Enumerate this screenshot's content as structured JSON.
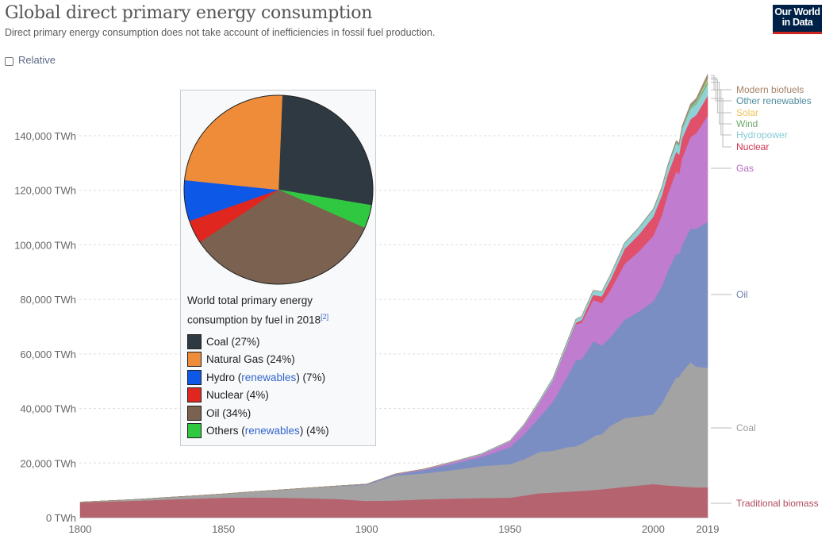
{
  "header": {
    "title": "Global direct primary energy consumption",
    "subtitle": "Direct primary energy consumption does not take account of inefficiencies in fossil fuel production.",
    "logo_line1": "Our World",
    "logo_line2": "in Data",
    "relative_label": "Relative",
    "relative_checked": false
  },
  "colors": {
    "traditional_biomass": "#b5646f",
    "coal": "#a3a3a3",
    "oil": "#7b8ec4",
    "gas": "#c07cce",
    "nuclear": "#e0506a",
    "hydropower": "#8fd2d6",
    "wind": "#7fb87a",
    "solar": "#f2cc6b",
    "other_renewables": "#5a9aa8",
    "modern_biofuels": "#a88a70"
  },
  "chart_data": {
    "type": "area",
    "stacked": true,
    "title": "Global direct primary energy consumption",
    "xlabel": "",
    "ylabel": "",
    "xlim": [
      1800,
      2019
    ],
    "ylim": [
      0,
      160000
    ],
    "x_ticks": [
      "1800",
      "1850",
      "1900",
      "1950",
      "2000",
      "2019"
    ],
    "y_ticks": [
      {
        "value": 0,
        "label": "0 TWh"
      },
      {
        "value": 20000,
        "label": "20,000 TWh"
      },
      {
        "value": 40000,
        "label": "40,000 TWh"
      },
      {
        "value": 60000,
        "label": "60,000 TWh"
      },
      {
        "value": 80000,
        "label": "80,000 TWh"
      },
      {
        "value": 100000,
        "label": "100,000 TWh"
      },
      {
        "value": 120000,
        "label": "120,000 TWh"
      },
      {
        "value": 140000,
        "label": "140,000 TWh"
      }
    ],
    "grid": true,
    "legend_placement": "right (inline labels)",
    "x": [
      1800,
      1810,
      1820,
      1830,
      1840,
      1850,
      1860,
      1870,
      1880,
      1890,
      1900,
      1910,
      1920,
      1930,
      1940,
      1950,
      1955,
      1960,
      1965,
      1970,
      1973,
      1975,
      1979,
      1980,
      1982,
      1985,
      1990,
      1995,
      2000,
      2003,
      2005,
      2008,
      2009,
      2010,
      2013,
      2015,
      2019
    ],
    "series": [
      {
        "name": "Traditional biomass",
        "key": "traditional_biomass",
        "values": [
          5600,
          5900,
          6200,
          6600,
          7000,
          7300,
          7400,
          7300,
          7100,
          6800,
          6100,
          6300,
          6700,
          7000,
          7200,
          7300,
          8100,
          8900,
          9200,
          9500,
          9700,
          9800,
          10100,
          10200,
          10400,
          10700,
          11300,
          11800,
          12300,
          12000,
          11800,
          11600,
          11500,
          11400,
          11200,
          11100,
          11100
        ]
      },
      {
        "name": "Coal",
        "key": "coal",
        "values": [
          100,
          300,
          500,
          800,
          1000,
          1400,
          2100,
          2900,
          3800,
          4700,
          5900,
          9100,
          9500,
          10400,
          11700,
          12300,
          13300,
          15100,
          15300,
          16300,
          16500,
          17200,
          19400,
          20000,
          20100,
          22900,
          25200,
          25300,
          25500,
          29800,
          34000,
          39800,
          40000,
          41900,
          45800,
          44300,
          43800
        ]
      },
      {
        "name": "Oil",
        "key": "oil",
        "values": [
          0,
          0,
          0,
          0,
          0,
          0,
          0,
          0,
          20,
          100,
          200,
          400,
          1200,
          2300,
          3300,
          6200,
          9200,
          12500,
          18000,
          26000,
          31500,
          31000,
          35000,
          34000,
          32500,
          32500,
          36000,
          38500,
          41500,
          43000,
          44500,
          45500,
          45000,
          46500,
          49000,
          50500,
          53500
        ]
      },
      {
        "name": "Gas",
        "key": "gas",
        "values": [
          0,
          0,
          0,
          0,
          0,
          0,
          0,
          0,
          0,
          50,
          100,
          200,
          300,
          600,
          900,
          2100,
          3300,
          5300,
          7800,
          11400,
          13200,
          13400,
          15200,
          15300,
          15600,
          17200,
          20500,
          22000,
          24000,
          26000,
          28000,
          30000,
          29500,
          31800,
          33500,
          35000,
          39000
        ]
      },
      {
        "name": "Nuclear",
        "key": "nuclear",
        "values": [
          0,
          0,
          0,
          0,
          0,
          0,
          0,
          0,
          0,
          0,
          0,
          0,
          0,
          0,
          0,
          0,
          0,
          10,
          60,
          220,
          530,
          1000,
          1900,
          2000,
          2500,
          3700,
          5500,
          6200,
          7000,
          7300,
          7300,
          7200,
          7000,
          7200,
          6500,
          6700,
          7300
        ]
      },
      {
        "name": "Hydropower",
        "key": "hydropower",
        "values": [
          0,
          0,
          0,
          0,
          0,
          0,
          0,
          0,
          0,
          0,
          0,
          50,
          120,
          200,
          300,
          330,
          450,
          680,
          880,
          1200,
          1300,
          1400,
          1650,
          1700,
          1750,
          1900,
          2100,
          2400,
          2600,
          2700,
          2900,
          3200,
          3200,
          3400,
          3800,
          3900,
          4200
        ]
      },
      {
        "name": "Wind",
        "key": "wind",
        "values": [
          0,
          0,
          0,
          0,
          0,
          0,
          0,
          0,
          0,
          0,
          0,
          0,
          0,
          0,
          0,
          0,
          0,
          0,
          0,
          0,
          0,
          0,
          0,
          0,
          0,
          0,
          4,
          8,
          31,
          63,
          104,
          220,
          276,
          342,
          640,
          830,
          1420
        ]
      },
      {
        "name": "Solar",
        "key": "solar",
        "values": [
          0,
          0,
          0,
          0,
          0,
          0,
          0,
          0,
          0,
          0,
          0,
          0,
          0,
          0,
          0,
          0,
          0,
          0,
          0,
          0,
          0,
          0,
          0,
          0,
          0,
          0,
          0,
          0,
          1,
          1,
          4,
          12,
          20,
          32,
          139,
          256,
          724
        ]
      },
      {
        "name": "Other renewables",
        "key": "other_renewables",
        "values": [
          0,
          0,
          0,
          0,
          0,
          0,
          0,
          0,
          0,
          0,
          0,
          0,
          0,
          0,
          0,
          0,
          0,
          0,
          0,
          0,
          0,
          0,
          0,
          0,
          0,
          50,
          120,
          150,
          180,
          220,
          250,
          300,
          310,
          330,
          400,
          440,
          500
        ]
      },
      {
        "name": "Modern biofuels",
        "key": "modern_biofuels",
        "values": [
          0,
          0,
          0,
          0,
          0,
          0,
          0,
          0,
          0,
          0,
          0,
          0,
          0,
          0,
          0,
          0,
          0,
          0,
          0,
          0,
          0,
          0,
          0,
          0,
          0,
          20,
          80,
          100,
          110,
          150,
          220,
          450,
          500,
          560,
          690,
          750,
          1100
        ]
      }
    ],
    "labels_order_top_to_bottom": [
      "Modern biofuels",
      "Other renewables",
      "Solar",
      "Wind",
      "Hydropower",
      "Nuclear",
      "Gas",
      "Oil",
      "Coal",
      "Traditional biomass"
    ]
  },
  "infobox": {
    "caption_line1": "World total primary energy",
    "caption_line2": "consumption by fuel in 2018",
    "citation": "[2]",
    "pie": {
      "type": "pie",
      "slices": [
        {
          "name": "Coal",
          "percent": 27,
          "color": "#2f3941"
        },
        {
          "name": "Others (renewables)",
          "percent": 4,
          "color": "#31c841"
        },
        {
          "name": "Oil",
          "percent": 34,
          "color": "#7a6150"
        },
        {
          "name": "Nuclear",
          "percent": 4,
          "color": "#e0271f"
        },
        {
          "name": "Hydro (renewables)",
          "percent": 7,
          "color": "#0e58e8"
        },
        {
          "name": "Natural Gas",
          "percent": 24,
          "color": "#ee8c3a"
        }
      ]
    },
    "legend": [
      {
        "pre": "Coal (27%)",
        "link": "",
        "post": "",
        "color": "#2f3941"
      },
      {
        "pre": "Natural Gas (24%)",
        "link": "",
        "post": "",
        "color": "#ee8c3a"
      },
      {
        "pre": "Hydro (",
        "link": "renewables",
        "post": ") (7%)",
        "color": "#0e58e8"
      },
      {
        "pre": "Nuclear (4%)",
        "link": "",
        "post": "",
        "color": "#e0271f"
      },
      {
        "pre": "Oil (34%)",
        "link": "",
        "post": "",
        "color": "#7a6150"
      },
      {
        "pre": "Others (",
        "link": "renewables",
        "post": ") (4%)",
        "color": "#31c841"
      }
    ]
  }
}
